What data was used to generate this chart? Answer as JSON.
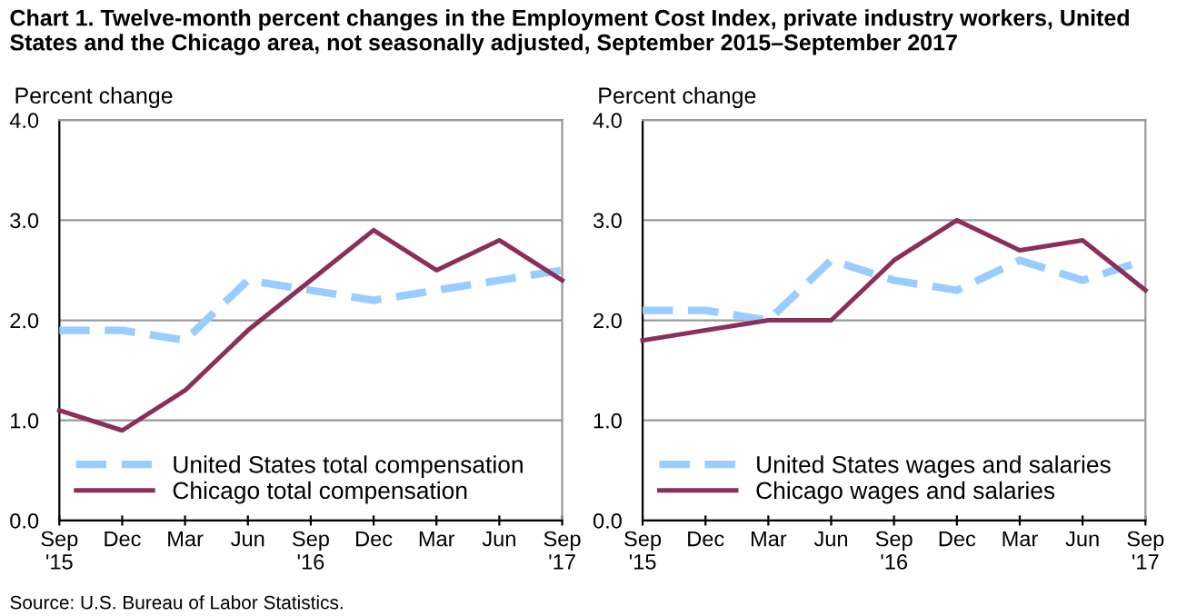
{
  "chart_data": [
    {
      "type": "line",
      "title": "Chart 1. Twelve-month percent changes in the Employment Cost Index, private industry workers, United States and the Chicago area, not seasonally adjusted, September 2015–September 2017",
      "ylabel": "Percent change",
      "annotations": [
        "Source: U.S. Bureau of Labor Statistics."
      ],
      "categories": [
        "Sep\n'15",
        "Dec",
        "Mar",
        "Jun",
        "Sep\n'16",
        "Dec",
        "Mar",
        "Jun",
        "Sep\n'17"
      ],
      "series": [
        {
          "name": "United States total compensation",
          "color": "#99ccff",
          "line_style": "dashed",
          "values": [
            1.9,
            1.9,
            1.8,
            2.4,
            2.3,
            2.2,
            2.3,
            2.4,
            2.5
          ]
        },
        {
          "name": "Chicago total compensation",
          "color": "#8b2f5a",
          "line_style": "solid",
          "values": [
            1.1,
            0.9,
            1.3,
            1.9,
            2.4,
            2.9,
            2.5,
            2.8,
            2.4
          ]
        }
      ],
      "ylim": [
        0,
        4
      ],
      "yticks": [
        {
          "value": 0,
          "label": "0.0"
        },
        {
          "value": 1,
          "label": "1.0"
        },
        {
          "value": 2,
          "label": "2.0"
        },
        {
          "value": 3,
          "label": "3.0"
        },
        {
          "value": 4,
          "label": "4.0"
        }
      ],
      "grid": "y",
      "legend": "bottom left",
      "marker": "none"
    },
    {
      "type": "line",
      "ylabel": "Percent change",
      "categories": [
        "Sep\n'15",
        "Dec",
        "Mar",
        "Jun",
        "Sep\n'16",
        "Dec",
        "Mar",
        "Jun",
        "Sep\n'17"
      ],
      "series": [
        {
          "name": "United States wages and salaries",
          "color": "#99ccff",
          "line_style": "dashed",
          "values": [
            2.1,
            2.1,
            2.0,
            2.6,
            2.4,
            2.3,
            2.6,
            2.4,
            2.6
          ]
        },
        {
          "name": "Chicago wages and salaries",
          "color": "#8b2f5a",
          "line_style": "solid",
          "values": [
            1.8,
            1.9,
            2.0,
            2.0,
            2.6,
            3.0,
            2.7,
            2.8,
            2.3
          ]
        }
      ],
      "ylim": [
        0,
        4
      ],
      "yticks": [
        {
          "value": 0,
          "label": "0.0"
        },
        {
          "value": 1,
          "label": "1.0"
        },
        {
          "value": 2,
          "label": "2.0"
        },
        {
          "value": 3,
          "label": "3.0"
        },
        {
          "value": 4,
          "label": "4.0"
        }
      ],
      "grid": "y",
      "legend": "bottom left",
      "marker": "none"
    }
  ]
}
